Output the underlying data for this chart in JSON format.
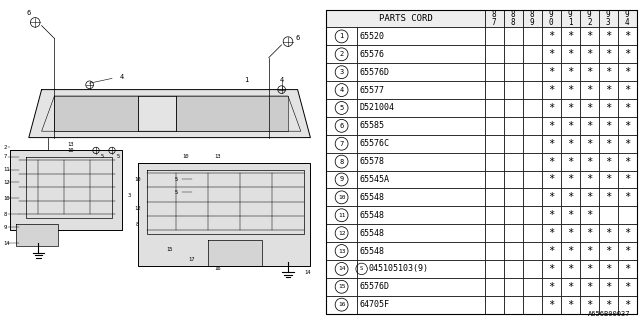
{
  "diagram_code": "A656B00037",
  "bg_color": "#ffffff",
  "text_color": "#000000",
  "font_size": 6.0,
  "header_font_size": 6.5,
  "rows": [
    {
      "num": "1",
      "part": "65520",
      "stars": [
        0,
        0,
        0,
        1,
        1,
        1,
        1,
        1
      ]
    },
    {
      "num": "2",
      "part": "65576",
      "stars": [
        0,
        0,
        0,
        1,
        1,
        1,
        1,
        1
      ]
    },
    {
      "num": "3",
      "part": "65576D",
      "stars": [
        0,
        0,
        0,
        1,
        1,
        1,
        1,
        1
      ]
    },
    {
      "num": "4",
      "part": "65577",
      "stars": [
        0,
        0,
        0,
        1,
        1,
        1,
        1,
        1
      ]
    },
    {
      "num": "5",
      "part": "D521004",
      "stars": [
        0,
        0,
        0,
        1,
        1,
        1,
        1,
        1
      ]
    },
    {
      "num": "6",
      "part": "65585",
      "stars": [
        0,
        0,
        0,
        1,
        1,
        1,
        1,
        1
      ]
    },
    {
      "num": "7",
      "part": "65576C",
      "stars": [
        0,
        0,
        0,
        1,
        1,
        1,
        1,
        1
      ]
    },
    {
      "num": "8",
      "part": "65578",
      "stars": [
        0,
        0,
        0,
        1,
        1,
        1,
        1,
        1
      ]
    },
    {
      "num": "9",
      "part": "65545A",
      "stars": [
        0,
        0,
        0,
        1,
        1,
        1,
        1,
        1
      ]
    },
    {
      "num": "10",
      "part": "65548",
      "stars": [
        0,
        0,
        0,
        1,
        1,
        1,
        1,
        1
      ]
    },
    {
      "num": "11",
      "part": "65548",
      "stars": [
        0,
        0,
        0,
        1,
        1,
        1,
        0,
        0
      ]
    },
    {
      "num": "12",
      "part": "65548",
      "stars": [
        0,
        0,
        0,
        1,
        1,
        1,
        1,
        1
      ]
    },
    {
      "num": "13",
      "part": "65548",
      "stars": [
        0,
        0,
        0,
        1,
        1,
        1,
        1,
        1
      ]
    },
    {
      "num": "14",
      "part": "S045105103(9)",
      "stars": [
        0,
        0,
        0,
        1,
        1,
        1,
        1,
        1
      ]
    },
    {
      "num": "15",
      "part": "65576D",
      "stars": [
        0,
        0,
        0,
        1,
        1,
        1,
        1,
        1
      ]
    },
    {
      "num": "16",
      "part": "64705F",
      "stars": [
        0,
        0,
        0,
        1,
        1,
        1,
        1,
        1
      ]
    }
  ],
  "year_labels": [
    "87",
    "88",
    "89",
    "90",
    "91",
    "92",
    "93",
    "94"
  ]
}
